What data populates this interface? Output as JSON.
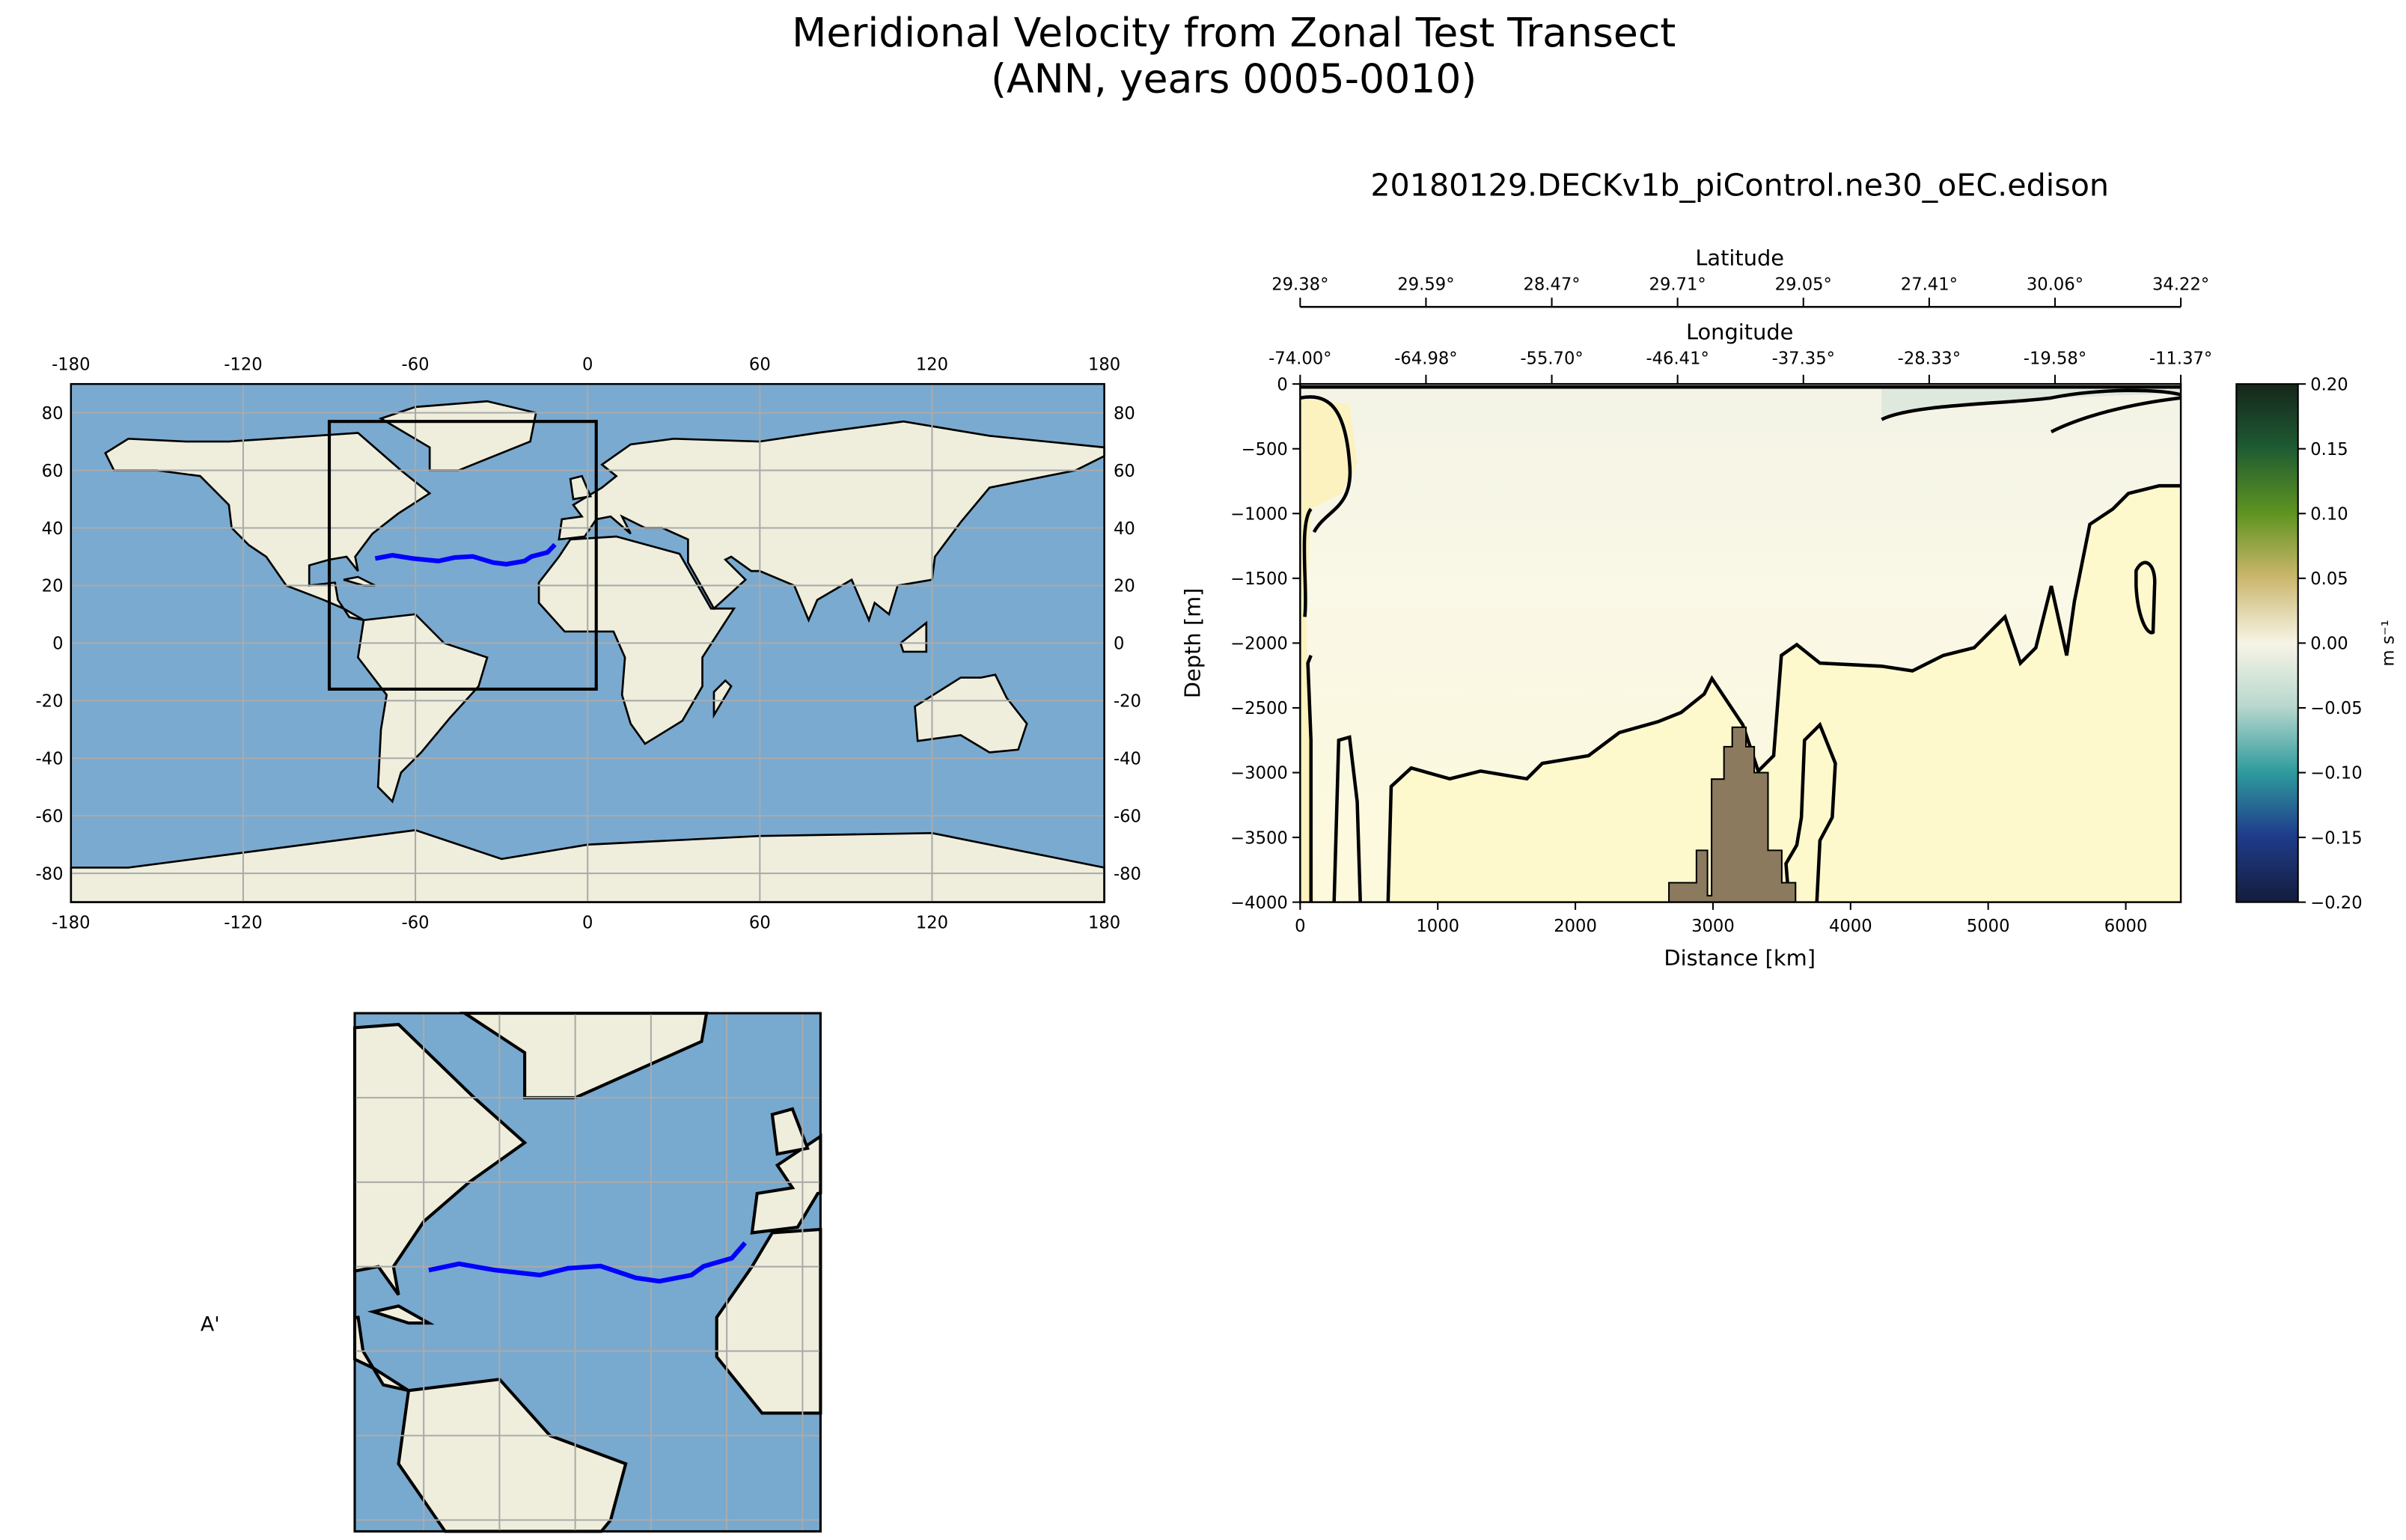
{
  "figure": {
    "title_line1": "Meridional Velocity from Zonal Test Transect",
    "title_line2": "(ANN, years 0005-0010)",
    "subtitle": "20180129.DECKv1b_piControl.ne30_oEC.edison",
    "inset_label": "A'"
  },
  "world_map": {
    "lon_ticks": [
      "-180",
      "-120",
      "-60",
      "0",
      "60",
      "120",
      "180"
    ],
    "lon_values": [
      -180,
      -120,
      -60,
      0,
      60,
      120,
      180
    ],
    "lat_ticks": [
      "80",
      "60",
      "40",
      "20",
      "0",
      "-20",
      "-40",
      "-60",
      "-80"
    ],
    "lat_values": [
      80,
      60,
      40,
      20,
      0,
      -20,
      -40,
      -60,
      -80
    ],
    "region_box": {
      "lon_min": -90,
      "lon_max": 3,
      "lat_min": -16,
      "lat_max": 77
    },
    "transect_color": "#0000ff",
    "ocean_color": "#7aaad0",
    "land_color": "#efeedc"
  },
  "transect": {
    "lon": [
      -74.0,
      -68,
      -61,
      -52,
      -46.41,
      -40,
      -33,
      -28.33,
      -22,
      -19.58,
      -14,
      -11.37
    ],
    "lat": [
      29.38,
      30.5,
      29.4,
      28.5,
      29.71,
      30.1,
      28.0,
      27.41,
      28.5,
      30.06,
      31.5,
      34.22
    ]
  },
  "chart_data": {
    "type": "contour",
    "title": "",
    "xlabel": "Distance [km]",
    "ylabel": "Depth [m]",
    "xlim": [
      0,
      6400
    ],
    "ylim": [
      -4000,
      0
    ],
    "xticks": [
      0,
      1000,
      2000,
      3000,
      4000,
      5000,
      6000
    ],
    "xtick_labels": [
      "0",
      "1000",
      "2000",
      "3000",
      "4000",
      "5000",
      "6000"
    ],
    "yticks": [
      0,
      -500,
      -1000,
      -1500,
      -2000,
      -2500,
      -3000,
      -3500,
      -4000
    ],
    "ytick_labels": [
      "0",
      "−500",
      "−1000",
      "−1500",
      "−2000",
      "−2500",
      "−3000",
      "−3500",
      "−4000"
    ],
    "top_axis_1": {
      "label": "Latitude",
      "tick_labels": [
        "29.38°",
        "29.59°",
        "28.47°",
        "29.71°",
        "29.05°",
        "27.41°",
        "30.06°",
        "34.22°"
      ]
    },
    "top_axis_2": {
      "label": "Longitude",
      "tick_labels": [
        "-74.00°",
        "-64.98°",
        "-55.70°",
        "-46.41°",
        "-37.35°",
        "-28.33°",
        "-19.58°",
        "-11.37°"
      ]
    },
    "bathymetry_color": "#8c7a5e",
    "colorbar": {
      "label": "m s⁻¹",
      "range": [
        -0.2,
        0.2
      ],
      "ticks": [
        0.2,
        0.15,
        0.1,
        0.05,
        0.0,
        -0.05,
        -0.1,
        -0.15,
        -0.2
      ],
      "tick_labels": [
        "0.20",
        "0.15",
        "0.10",
        "0.05",
        "0.00",
        "−0.05",
        "−0.10",
        "−0.15",
        "−0.20"
      ]
    }
  }
}
